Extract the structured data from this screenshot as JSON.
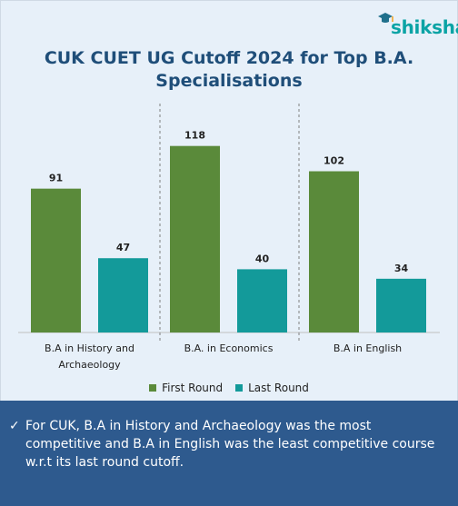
{
  "brand": {
    "name": "shiksha"
  },
  "chart_data": {
    "type": "bar",
    "title": "CUK CUET UG Cutoff 2024 for Top B.A. Specialisations",
    "categories": [
      "B.A in History and Archaeology",
      "B.A. in Economics",
      "B.A in English"
    ],
    "series": [
      {
        "name": "First Round",
        "values": [
          91,
          118,
          102
        ],
        "color": "#5a8a3a"
      },
      {
        "name": "Last Round",
        "values": [
          47,
          40,
          34
        ],
        "color": "#139a9a"
      }
    ],
    "ylim": [
      0,
      130
    ],
    "grid": false,
    "legend": "bottom",
    "data_labels": true
  },
  "note": {
    "text": "For CUK, B.A in History and Archaeology was the most competitive and B.A in English was the least competitive course w.r.t its last round cutoff."
  },
  "icons": {
    "logo": "graduation-cap-icon",
    "bullet": "checkmark-icon"
  }
}
